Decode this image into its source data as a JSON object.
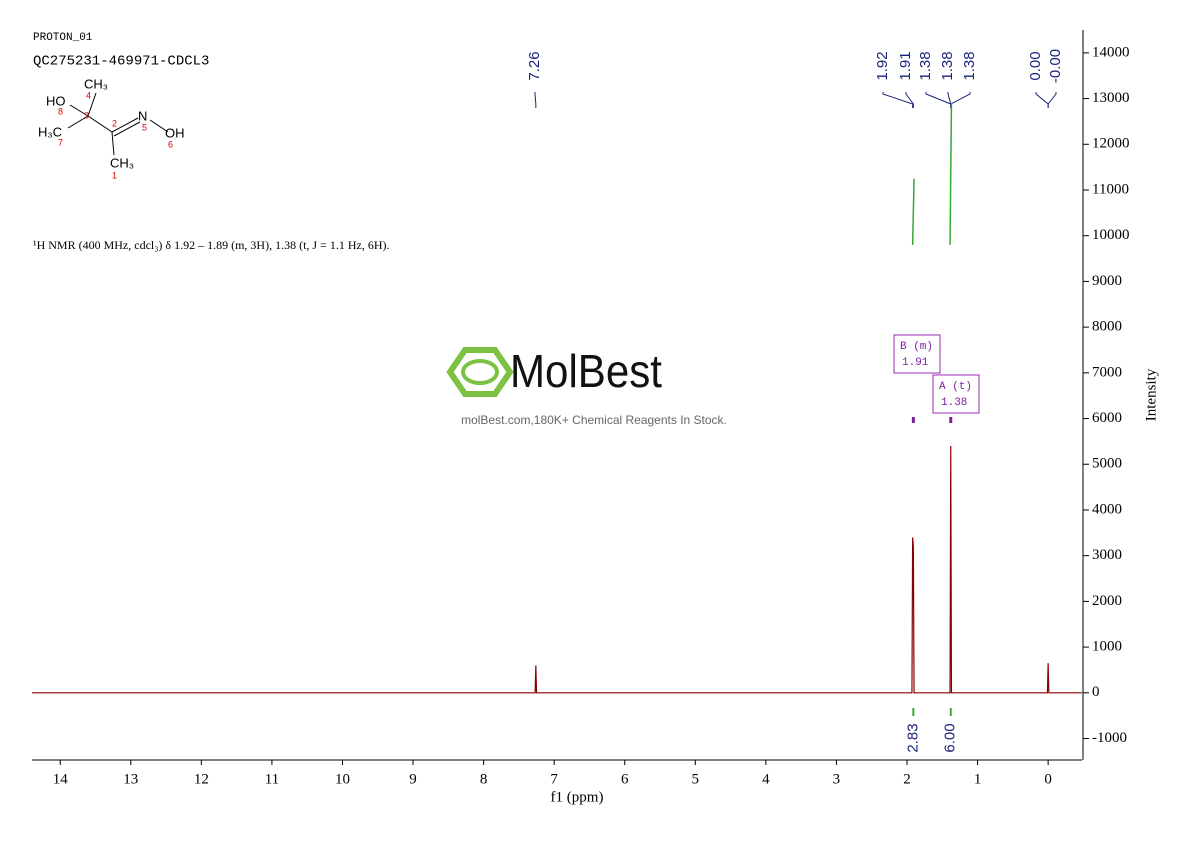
{
  "header": {
    "experiment": "PROTON_01",
    "sample": "QC275231-469971-CDCL3",
    "description": "¹H NMR (400 MHz, cdcl₃) δ 1.92 – 1.89 (m, 3H), 1.38 (t, J = 1.1 Hz, 6H)."
  },
  "structure": {
    "atoms": [
      "HO",
      "CH₃",
      "H₃C",
      "N",
      "OH",
      "CH₃"
    ],
    "numbers": [
      "1",
      "2",
      "3",
      "4",
      "5",
      "6",
      "7",
      "8"
    ]
  },
  "watermark": {
    "brand": "MolBest",
    "tagline": "molBest.com,180K+ Chemical Reagents In Stock."
  },
  "chart_data": {
    "type": "line",
    "xlabel": "f1 (ppm)",
    "ylabel": "Intensity",
    "color": "#8b0000",
    "x": [
      14.4,
      7.27,
      7.26,
      7.25,
      1.93,
      1.92,
      1.91,
      1.9,
      1.39,
      1.38,
      1.37,
      0.01,
      0,
      -0.01,
      -0.48
    ],
    "values": [
      0,
      0,
      600,
      0,
      0,
      3400,
      3200,
      0,
      0,
      5400,
      0,
      0,
      650,
      0,
      0
    ],
    "xlim": [
      14.4,
      -0.48
    ],
    "xticks": [
      14,
      13,
      12,
      11,
      10,
      9,
      8,
      7,
      6,
      5,
      4,
      3,
      2,
      1,
      0
    ],
    "ylim": [
      -1470,
      14500
    ],
    "yticks": [
      -1000,
      0,
      1000,
      2000,
      3000,
      4000,
      5000,
      6000,
      7000,
      8000,
      9000,
      10000,
      11000,
      12000,
      13000,
      14000
    ],
    "peak_labels": [
      {
        "value": 7.26,
        "label": "7.26"
      },
      {
        "value": 1.92,
        "label": "1.92"
      },
      {
        "value": 1.91,
        "label": "1.91"
      },
      {
        "value": 1.38,
        "label": "1.38"
      },
      {
        "value": 1.38,
        "label": "1.38"
      },
      {
        "value": 1.38,
        "label": "1.38"
      },
      {
        "value": 0,
        "label": "0.00"
      },
      {
        "value": 0,
        "label": "-0.00"
      }
    ],
    "multiplets": [
      {
        "name": "B (m)",
        "value": 1.91
      },
      {
        "name": "A (t)",
        "value": 1.38
      }
    ],
    "integrals": [
      {
        "value": 2.83,
        "label": "2.83",
        "range": [
          1.92,
          1.9
        ],
        "curve": [
          9800,
          11250
        ]
      },
      {
        "value": 6,
        "label": "6.00",
        "range": [
          1.39,
          1.37
        ],
        "curve": [
          9800,
          12900
        ]
      }
    ],
    "integral_color": "#33aa33"
  }
}
